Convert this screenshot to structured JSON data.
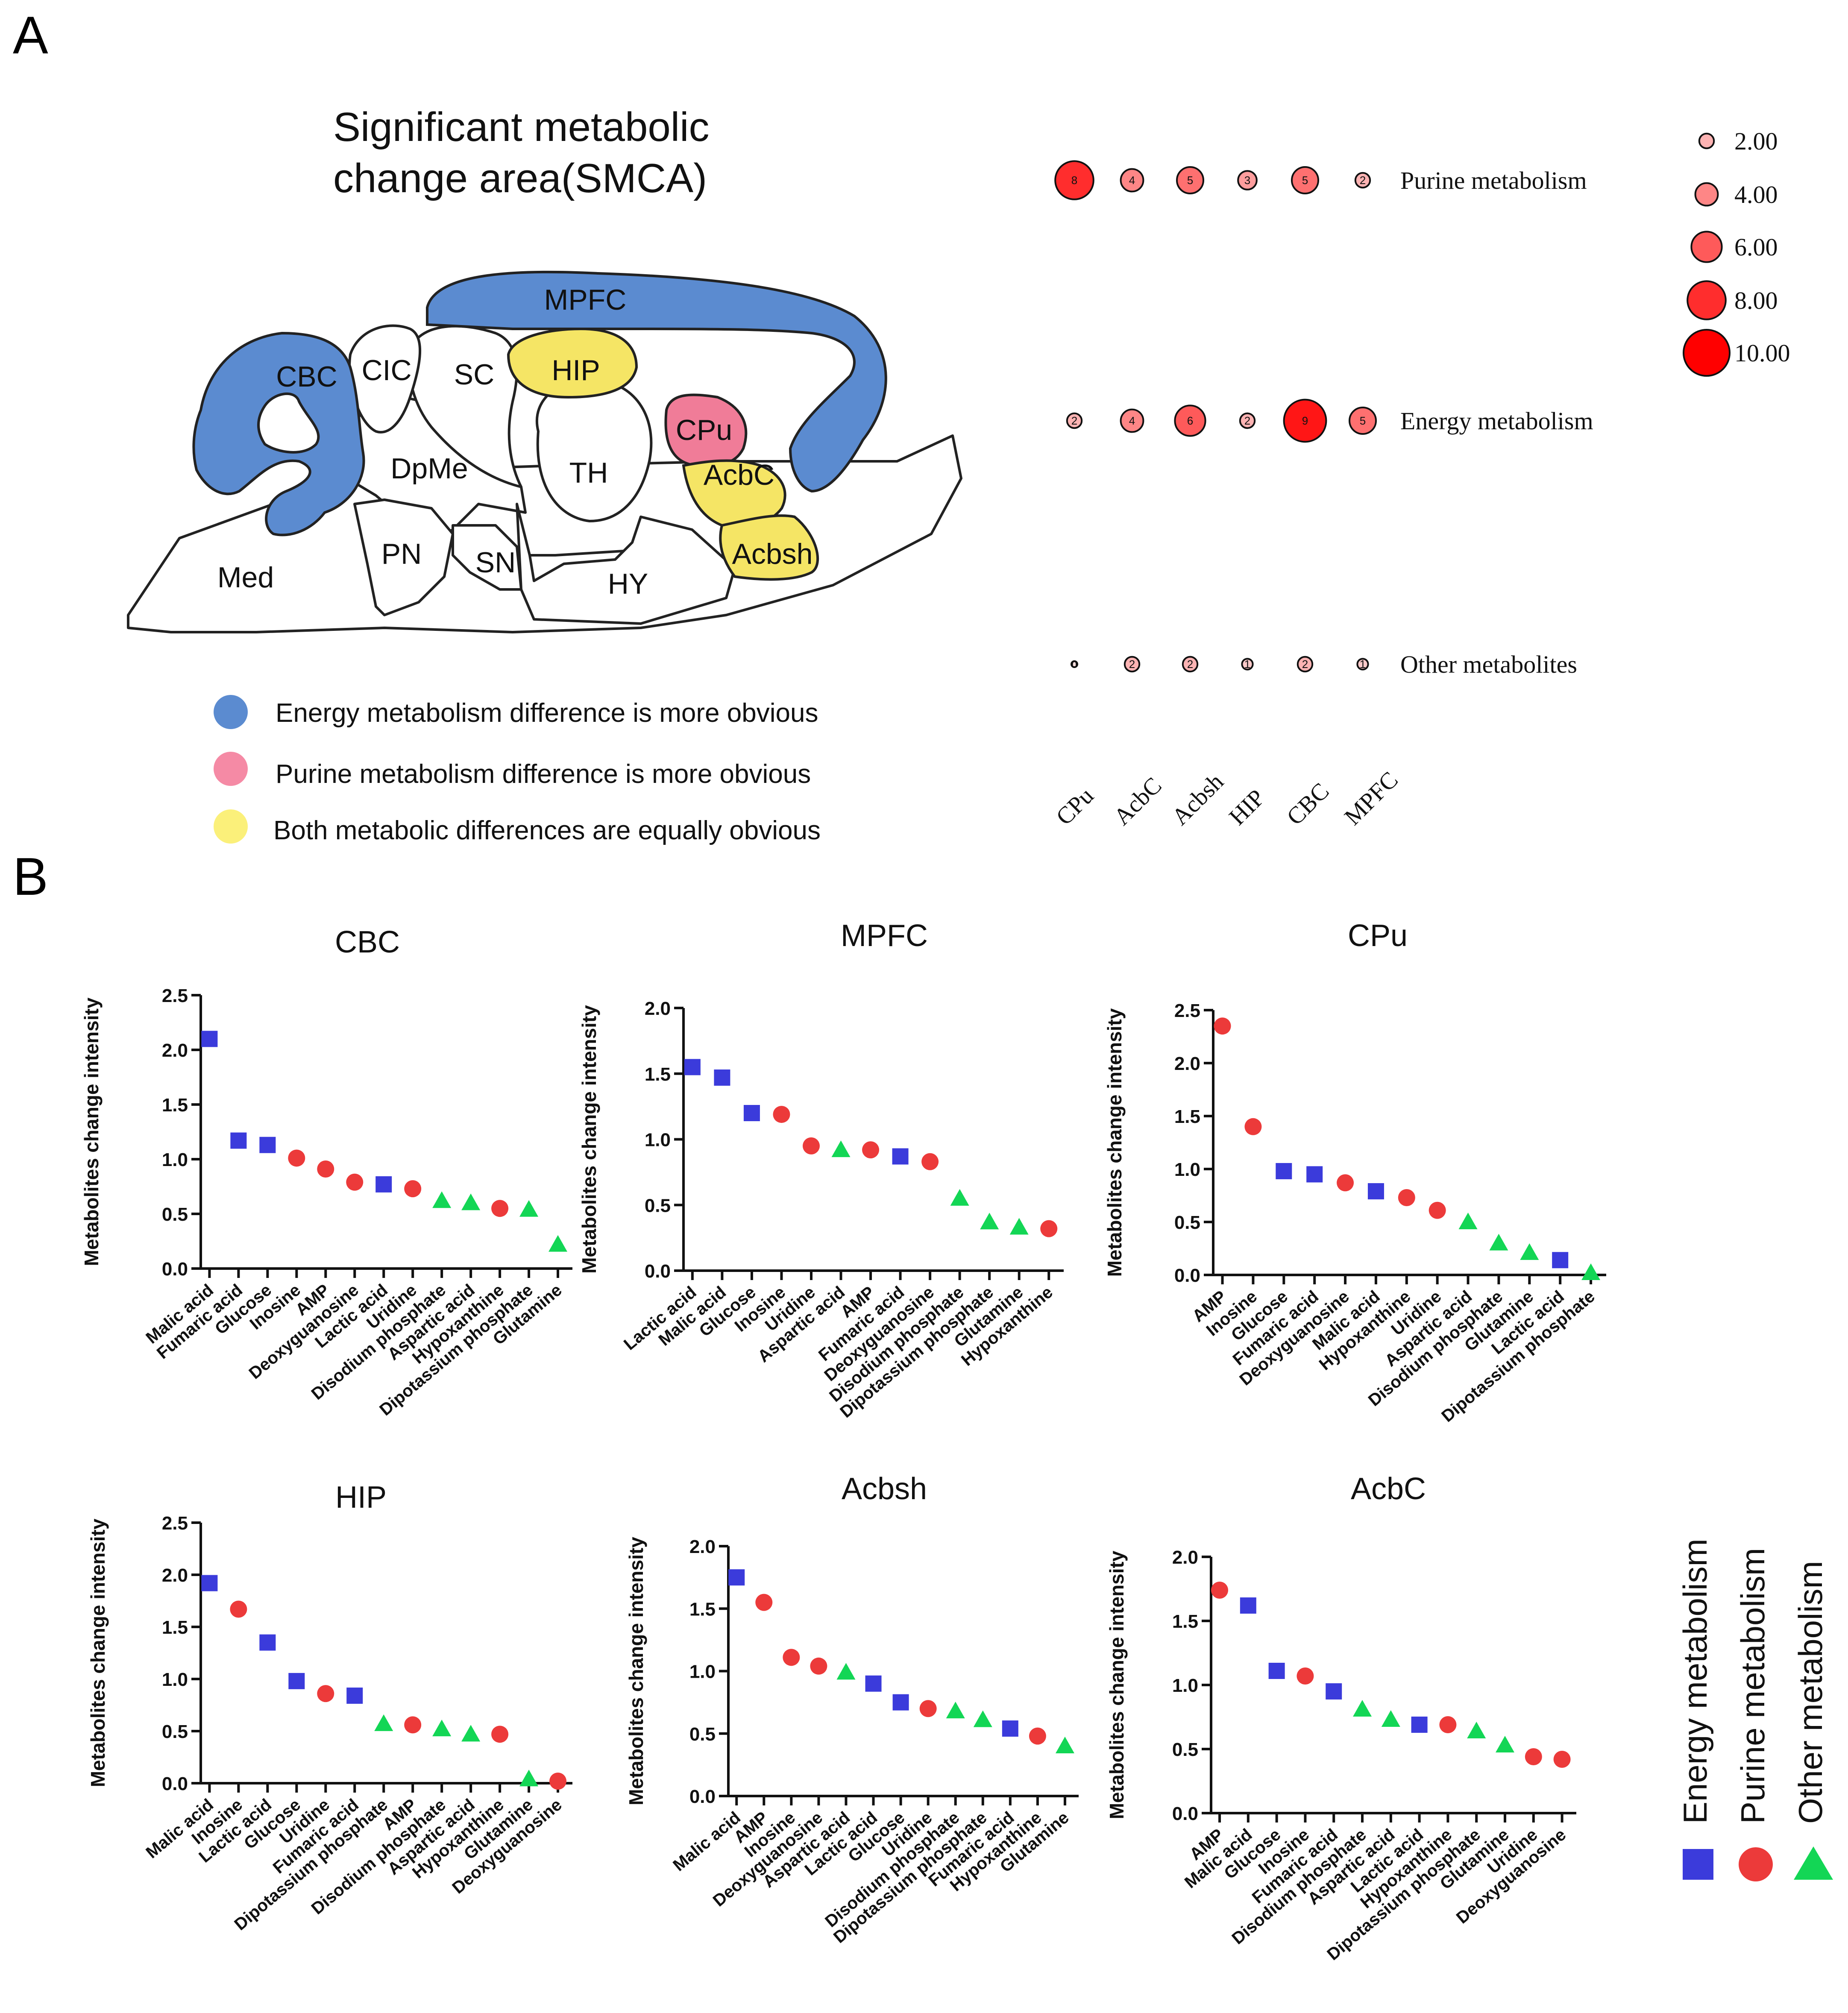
{
  "panel_labels": {
    "a": "A",
    "b": "B"
  },
  "brain": {
    "title_line1": "Significant metabolic",
    "title_line2": "change area(SMCA)",
    "regions": [
      "MPFC",
      "CBC",
      "CIC",
      "SC",
      "HIP",
      "CPu",
      "DpMe",
      "TH",
      "AcbC",
      "Acbsh",
      "Med",
      "PN",
      "SN",
      "HY"
    ],
    "legend": [
      {
        "label": "Energy metabolism difference is more obvious",
        "color": "#5b8bd0"
      },
      {
        "label": "Purine metabolism difference is more obvious",
        "color": "#f58aa5"
      },
      {
        "label": "Both metabolic differences are equally obvious",
        "color": "#fbf07a"
      }
    ],
    "colors": {
      "energy": "#5b8bd0",
      "purine": "#f07c98",
      "both": "#f5e565"
    }
  },
  "chart_data": [
    {
      "type": "bubble",
      "title": "",
      "x_categories": [
        "CPu",
        "AcbC",
        "Acbsh",
        "HIP",
        "CBC",
        "MPFC"
      ],
      "y_categories": [
        "Purine metabolism",
        "Energy metabolism",
        "Other metabolites"
      ],
      "values": [
        [
          8,
          4,
          5,
          3,
          5,
          2
        ],
        [
          2,
          4,
          6,
          2,
          9,
          5
        ],
        [
          0,
          2,
          2,
          1,
          2,
          1
        ]
      ],
      "size_legend": [
        "2.00",
        "4.00",
        "6.00",
        "8.00",
        "10.00"
      ],
      "size_legend_values": [
        2,
        4,
        6,
        8,
        10
      ],
      "color_low": "#fde0e0",
      "color_high": "#ff0000"
    },
    {
      "type": "scatter",
      "title": "CBC",
      "ylabel": "Metabolites change intensity",
      "ylim": [
        0,
        2.5
      ],
      "yticks": [
        "0.0",
        "0.5",
        "1.0",
        "1.5",
        "2.0",
        "2.5"
      ],
      "categories": [
        "Malic acid",
        "Fumaric acid",
        "Glucose",
        "Inosine",
        "AMP",
        "Deoxyguanosine",
        "Lactic acid",
        "Uridine",
        "Disodium phosphate",
        "Aspartic acid",
        "Hypoxanthine",
        "Dipotassium phosphate",
        "Glutamine"
      ],
      "values": [
        2.1,
        1.17,
        1.13,
        1.01,
        0.91,
        0.79,
        0.77,
        0.73,
        0.62,
        0.6,
        0.55,
        0.54,
        0.22
      ],
      "groups": [
        "E",
        "E",
        "E",
        "P",
        "P",
        "P",
        "E",
        "P",
        "O",
        "O",
        "P",
        "O",
        "O"
      ]
    },
    {
      "type": "scatter",
      "title": "MPFC",
      "ylabel": "Metabolites change intensity",
      "ylim": [
        0,
        2.0
      ],
      "yticks": [
        "0.0",
        "0.5",
        "1.0",
        "1.5",
        "2.0"
      ],
      "categories": [
        "Lactic acid",
        "Malic acid",
        "Glucose",
        "Inosine",
        "Uridine",
        "Aspartic acid",
        "AMP",
        "Fumaric acid",
        "Deoxyguanosine",
        "Disodium phosphate",
        "Dipotassium phosphate",
        "Glutamine",
        "Hypoxanthine"
      ],
      "values": [
        1.55,
        1.47,
        1.2,
        1.19,
        0.95,
        0.92,
        0.92,
        0.87,
        0.83,
        0.55,
        0.37,
        0.33,
        0.32
      ],
      "groups": [
        "E",
        "E",
        "E",
        "P",
        "P",
        "O",
        "P",
        "E",
        "P",
        "O",
        "O",
        "O",
        "P"
      ]
    },
    {
      "type": "scatter",
      "title": "CPu",
      "ylabel": "Metabolites change intensity",
      "ylim": [
        0,
        2.5
      ],
      "yticks": [
        "0.0",
        "0.5",
        "1.0",
        "1.5",
        "2.0",
        "2.5"
      ],
      "categories": [
        "AMP",
        "Inosine",
        "Glucose",
        "Fumaric acid",
        "Deoxyguanosine",
        "Malic acid",
        "Hypoxanthine",
        "Uridine",
        "Aspartic acid",
        "Disodium phosphate",
        "Glutamine",
        "Lactic acid",
        "Dipotassium phosphate"
      ],
      "values": [
        2.35,
        1.4,
        0.98,
        0.95,
        0.87,
        0.79,
        0.73,
        0.61,
        0.5,
        0.3,
        0.21,
        0.14,
        0.02
      ],
      "groups": [
        "P",
        "P",
        "E",
        "E",
        "P",
        "E",
        "P",
        "P",
        "O",
        "O",
        "O",
        "E",
        "O"
      ]
    },
    {
      "type": "scatter",
      "title": "HIP",
      "ylabel": "Metabolites change intensity",
      "ylim": [
        0,
        2.5
      ],
      "yticks": [
        "0.0",
        "0.5",
        "1.0",
        "1.5",
        "2.0",
        "2.5"
      ],
      "categories": [
        "Malic acid",
        "Inosine",
        "Lactic acid",
        "Glucose",
        "Uridine",
        "Fumaric acid",
        "Dipotassium phosphate",
        "AMP",
        "Disodium phosphate",
        "Aspartic acid",
        "Hypoxanthine",
        "Glutamine",
        "Deoxyguanosine"
      ],
      "values": [
        1.92,
        1.67,
        1.35,
        0.98,
        0.86,
        0.84,
        0.57,
        0.56,
        0.52,
        0.47,
        0.47,
        0.04,
        0.02
      ],
      "groups": [
        "E",
        "P",
        "E",
        "E",
        "P",
        "E",
        "O",
        "P",
        "O",
        "O",
        "P",
        "O",
        "P"
      ]
    },
    {
      "type": "scatter",
      "title": "Acbsh",
      "ylabel": "Metabolites change intensity",
      "ylim": [
        0,
        2.0
      ],
      "yticks": [
        "0.0",
        "0.5",
        "1.0",
        "1.5",
        "2.0"
      ],
      "categories": [
        "Malic acid",
        "AMP",
        "Inosine",
        "Deoxyguanosine",
        "Aspartic acid",
        "Lactic acid",
        "Glucose",
        "Uridine",
        "Disodium phosphate",
        "Dipotassium phosphate",
        "Fumaric acid",
        "Hypoxanthine",
        "Glutamine"
      ],
      "values": [
        1.75,
        1.55,
        1.11,
        1.04,
        0.99,
        0.9,
        0.75,
        0.7,
        0.68,
        0.61,
        0.54,
        0.48,
        0.4
      ],
      "groups": [
        "E",
        "P",
        "P",
        "P",
        "O",
        "E",
        "E",
        "P",
        "O",
        "O",
        "E",
        "P",
        "O"
      ]
    },
    {
      "type": "scatter",
      "title": "AcbC",
      "ylabel": "Metabolites change intensity",
      "ylim": [
        0,
        2.0
      ],
      "yticks": [
        "0.0",
        "0.5",
        "1.0",
        "1.5",
        "2.0"
      ],
      "categories": [
        "AMP",
        "Malic acid",
        "Glucose",
        "Inosine",
        "Fumaric acid",
        "Disodium phosphate",
        "Aspartic acid",
        "Lactic acid",
        "Hypoxanthine",
        "Dipotassium phosphate",
        "Glutamine",
        "Uridine",
        "Deoxyguanosine"
      ],
      "values": [
        1.74,
        1.62,
        1.11,
        1.07,
        0.95,
        0.81,
        0.73,
        0.69,
        0.69,
        0.64,
        0.53,
        0.44,
        0.42
      ],
      "groups": [
        "P",
        "E",
        "E",
        "P",
        "E",
        "O",
        "O",
        "E",
        "P",
        "O",
        "O",
        "P",
        "P"
      ]
    }
  ],
  "group_legend": [
    {
      "key": "E",
      "label": "Energy metabolism",
      "marker": "square",
      "color": "#3b3bdb"
    },
    {
      "key": "P",
      "label": "Purine metabolism",
      "marker": "circle",
      "color": "#ec3a3a"
    },
    {
      "key": "O",
      "label": "Other metabolism",
      "marker": "triangle",
      "color": "#13d655"
    }
  ]
}
